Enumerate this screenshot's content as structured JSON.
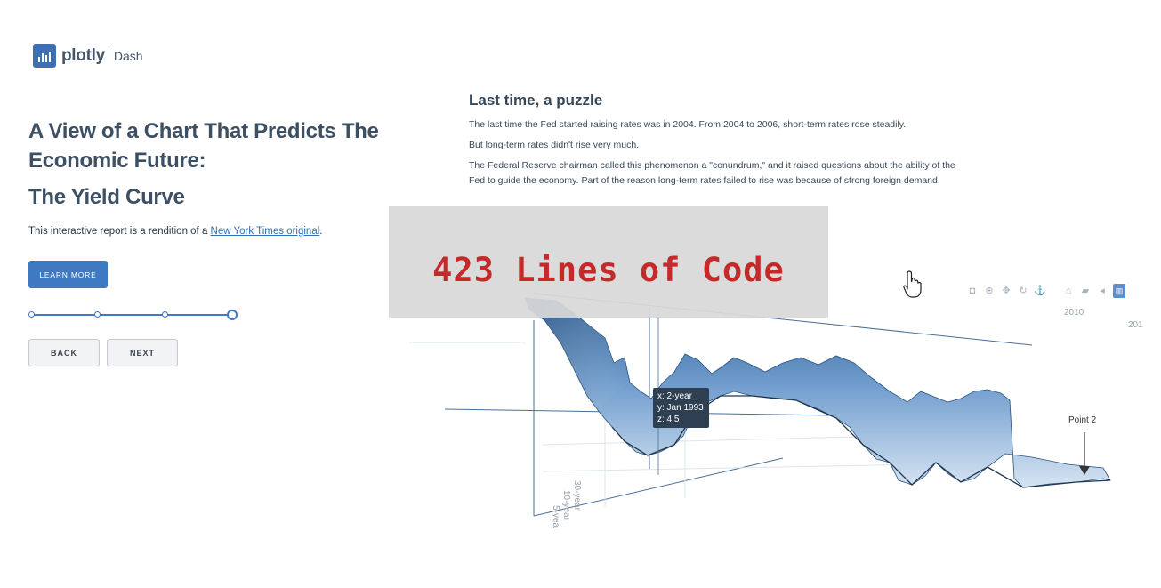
{
  "logo": {
    "word": "plotly",
    "product": "Dash"
  },
  "left": {
    "title": "A View of a Chart That Predicts The Economic Future:",
    "subtitle": "The Yield Curve",
    "intro_prefix": "This interactive report is a rendition of a ",
    "intro_link": "New York Times original",
    "intro_suffix": ".",
    "learn_more": "LEARN MORE",
    "slider": {
      "steps": 4,
      "current_step": 4
    },
    "back": "BACK",
    "next": "NEXT"
  },
  "content": {
    "heading": "Last time, a puzzle",
    "p1": "The last time the Fed started raising rates was in 2004. From 2004 to 2006, short-term rates rose steadily.",
    "p2": "But long-term rates didn't rise very much.",
    "p3": "The Federal Reserve chairman called this phenomenon a \"conundrum,\" and it raised questions about the ability of the Fed to guide the economy. Part of the reason long-term rates failed to rise was because of strong foreign demand."
  },
  "modebar": {
    "icons": [
      "camera-icon",
      "zoom-icon",
      "pan-icon",
      "orbit-icon",
      "turntable-icon",
      "home-icon",
      "camera-reset-icon",
      "toggle-hover-icon",
      "plotly-logo-icon"
    ]
  },
  "plot": {
    "tooltip": {
      "x": "x: 2-year",
      "y": "y: Jan 1993",
      "z": "z: 4.5"
    },
    "annotation": "Point 2",
    "axis_ticks": [
      "2010",
      "201",
      "30-year",
      "10-year",
      "5-yea"
    ],
    "colors": {
      "surface_dark": "#2f5f93",
      "surface_light": "#d6e4f2",
      "accent": "#3f79c2"
    }
  },
  "overlay": {
    "text": "423 Lines of Code",
    "color": "#c42a2a"
  }
}
